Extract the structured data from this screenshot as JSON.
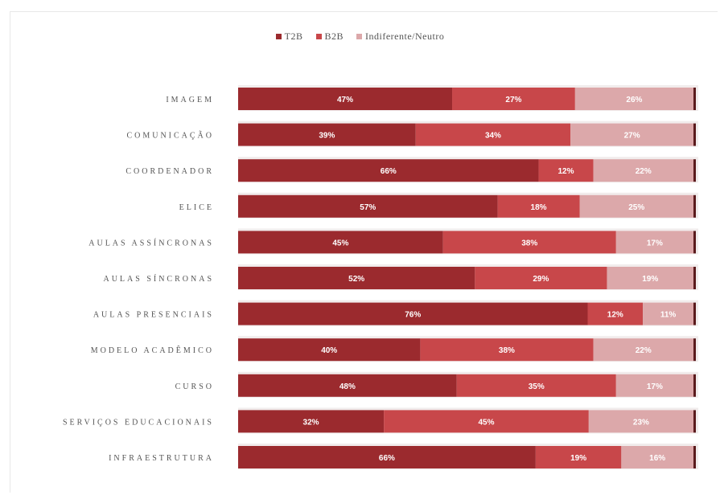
{
  "chart_data": {
    "type": "bar",
    "orientation": "horizontal",
    "stacked": true,
    "percent": true,
    "legend_position": "top",
    "categories": [
      "IMAGEM",
      "COMUNICAÇÃO",
      "COORDENADOR",
      "ELICE",
      "AULAS ASSÍNCRONAS",
      "AULAS SÍNCRONAS",
      "AULAS PRESENCIAIS",
      "MODELO ACADÊMICO",
      "CURSO",
      "SERVIÇOS EDUCACIONAIS",
      "INFRAESTRUTURA"
    ],
    "series": [
      {
        "name": "T2B",
        "color": "#9b2a2e",
        "values": [
          47,
          39,
          66,
          57,
          45,
          52,
          76,
          40,
          48,
          32,
          66
        ]
      },
      {
        "name": "B2B",
        "color": "#c8474a",
        "values": [
          27,
          34,
          12,
          18,
          38,
          29,
          12,
          38,
          35,
          45,
          19
        ]
      },
      {
        "name": "Indiferente/Neutro",
        "color": "#dca8aa",
        "values": [
          26,
          27,
          22,
          25,
          17,
          19,
          11,
          22,
          17,
          23,
          16
        ]
      }
    ],
    "value_labels": [
      [
        "47%",
        "27%",
        "26%"
      ],
      [
        "39%",
        "34%",
        "27%"
      ],
      [
        "66%",
        "12%",
        "22%"
      ],
      [
        "57%",
        "18%",
        "25%"
      ],
      [
        "45%",
        "38%",
        "17%"
      ],
      [
        "52%",
        "29%",
        "19%"
      ],
      [
        "76%",
        "12%",
        "11%"
      ],
      [
        "40%",
        "38%",
        "22%"
      ],
      [
        "48%",
        "35%",
        "17%"
      ],
      [
        "32%",
        "45%",
        "23%"
      ],
      [
        "66%",
        "19%",
        "16%"
      ]
    ]
  }
}
